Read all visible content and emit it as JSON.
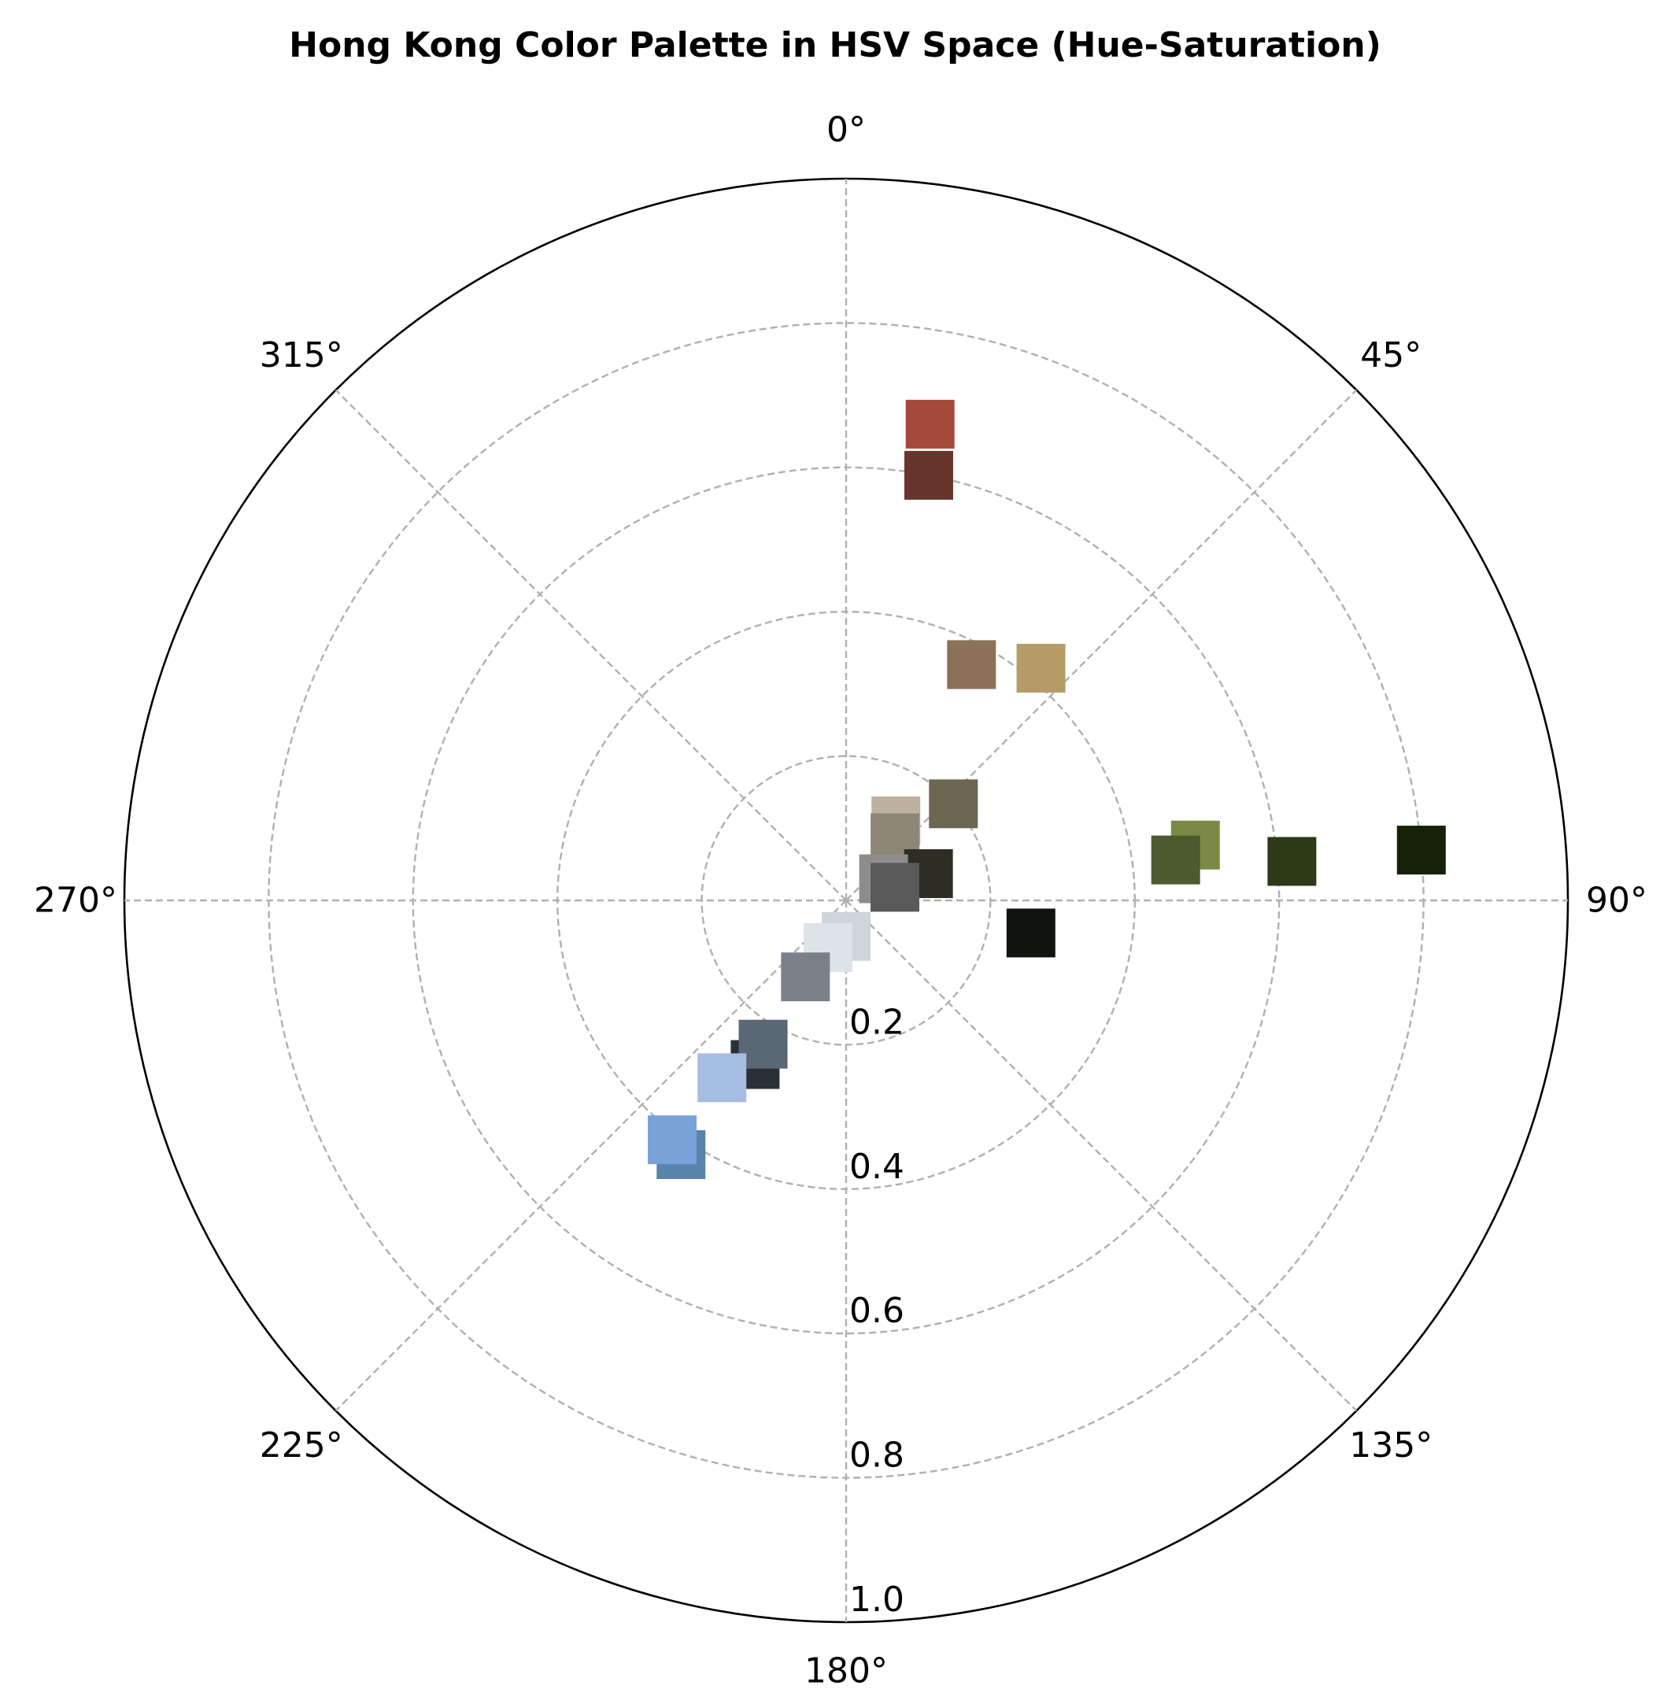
{
  "chart_data": {
    "type": "scatter",
    "projection": "polar",
    "title": "Hong Kong Color Palette in HSV Space (Hue-Saturation)",
    "theta_direction": "clockwise",
    "theta_zero": "top",
    "theta_unit": "degrees",
    "theta_ticks": [
      0,
      45,
      90,
      135,
      180,
      225,
      270,
      315
    ],
    "theta_tick_labels": [
      "0°",
      "45°",
      "90°",
      "135°",
      "180°",
      "225°",
      "270°",
      "315°"
    ],
    "r_lim": [
      0,
      1.0
    ],
    "r_ticks": [
      0.2,
      0.4,
      0.6,
      0.8,
      1.0
    ],
    "r_tick_labels": [
      "0.2",
      "0.4",
      "0.6",
      "0.8",
      "1.0"
    ],
    "r_tick_label_angle": 180,
    "grid": true,
    "marker": "square",
    "points": [
      {
        "hue": 10,
        "saturation": 0.67,
        "color": "#a54a3a"
      },
      {
        "hue": 11,
        "saturation": 0.6,
        "color": "#66362c"
      },
      {
        "hue": 28,
        "saturation": 0.37,
        "color": "#8b7158"
      },
      {
        "hue": 40,
        "saturation": 0.42,
        "color": "#b59c68"
      },
      {
        "hue": 48,
        "saturation": 0.2,
        "color": "#6c6652"
      },
      {
        "hue": 32,
        "saturation": 0.13,
        "color": "#bfb19f"
      },
      {
        "hue": 38,
        "saturation": 0.11,
        "color": "#8d8675"
      },
      {
        "hue": 72,
        "saturation": 0.12,
        "color": "#2d2d24"
      },
      {
        "hue": 81,
        "saturation": 0.49,
        "color": "#7a8a45"
      },
      {
        "hue": 83,
        "saturation": 0.46,
        "color": "#4c5a2e"
      },
      {
        "hue": 85,
        "saturation": 0.62,
        "color": "#2e3a17"
      },
      {
        "hue": 85,
        "saturation": 0.8,
        "color": "#172009"
      },
      {
        "hue": 100,
        "saturation": 0.26,
        "color": "#101411"
      },
      {
        "hue": 60,
        "saturation": 0.06,
        "color": "#8d8d8d"
      },
      {
        "hue": 75,
        "saturation": 0.07,
        "color": "#5a5a5a"
      },
      {
        "hue": 180,
        "saturation": 0.05,
        "color": "#cfd5da"
      },
      {
        "hue": 201,
        "saturation": 0.07,
        "color": "#dee3e8"
      },
      {
        "hue": 208,
        "saturation": 0.12,
        "color": "#7b808a"
      },
      {
        "hue": 209,
        "saturation": 0.26,
        "color": "#2a3038"
      },
      {
        "hue": 210,
        "saturation": 0.23,
        "color": "#5a6874"
      },
      {
        "hue": 215,
        "saturation": 0.3,
        "color": "#a6bde3"
      },
      {
        "hue": 213,
        "saturation": 0.42,
        "color": "#5983ab"
      },
      {
        "hue": 216,
        "saturation": 0.41,
        "color": "#78a2d8"
      }
    ]
  }
}
